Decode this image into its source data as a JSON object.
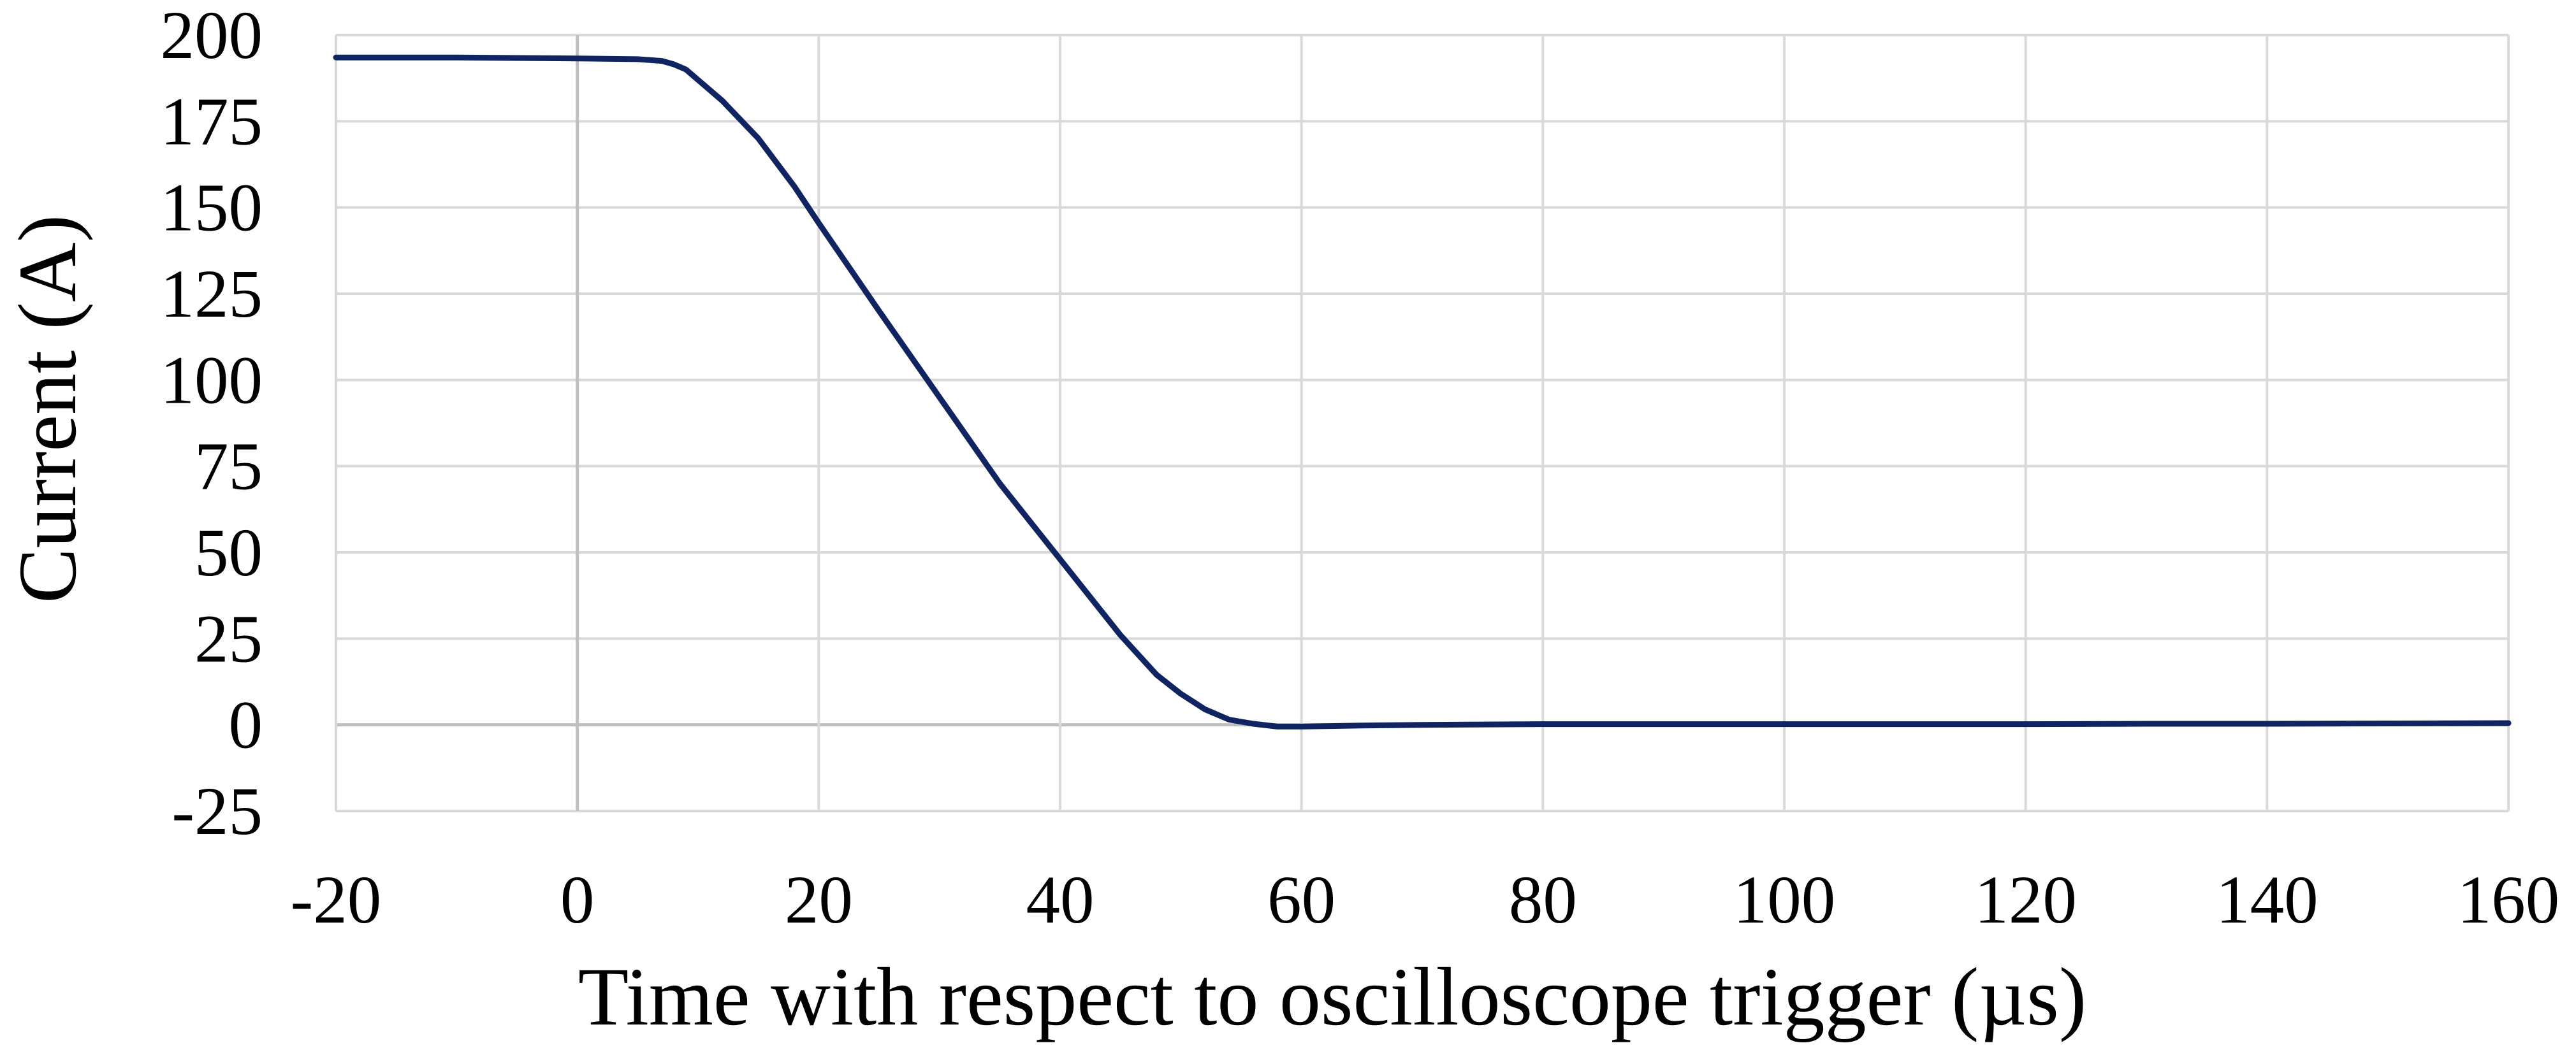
{
  "chart_data": {
    "type": "line",
    "title": "",
    "xlabel": "Time with respect to oscilloscope trigger (µs)",
    "ylabel": "Current (A)",
    "xlim": [
      -20,
      160
    ],
    "ylim": [
      -25,
      200
    ],
    "xticks": [
      -20,
      0,
      20,
      40,
      60,
      80,
      100,
      120,
      140,
      160
    ],
    "yticks": [
      -25,
      0,
      25,
      50,
      75,
      100,
      125,
      150,
      175,
      200
    ],
    "xtick_labels": [
      "-20",
      "0",
      "20",
      "40",
      "60",
      "80",
      "100",
      "120",
      "140",
      "160"
    ],
    "ytick_labels": [
      "-25",
      "0",
      "25",
      "50",
      "75",
      "100",
      "125",
      "150",
      "175",
      "200"
    ],
    "grid": true,
    "legend": "none",
    "colors": {
      "line": "#0f2461",
      "grid": "#d9d9d9",
      "zero_line": "#bfbfbf"
    },
    "series": [
      {
        "x": [
          -20,
          -10,
          0,
          5,
          7,
          8,
          9,
          10,
          12,
          15,
          18,
          20,
          25,
          30,
          35,
          40,
          45,
          48,
          50,
          52,
          54,
          56,
          58,
          60,
          65,
          70,
          80,
          90,
          100,
          110,
          120,
          130,
          140,
          150,
          160
        ],
        "y": [
          193.5,
          193.5,
          193.2,
          193.0,
          192.5,
          191.5,
          190.0,
          187.0,
          181.0,
          170.0,
          156.0,
          145.5,
          120.0,
          95.0,
          70.0,
          48.0,
          26.0,
          14.5,
          9.0,
          4.5,
          1.5,
          0.3,
          -0.5,
          -0.5,
          -0.2,
          0.0,
          0.2,
          0.2,
          0.2,
          0.2,
          0.2,
          0.3,
          0.3,
          0.4,
          0.5
        ]
      }
    ]
  }
}
